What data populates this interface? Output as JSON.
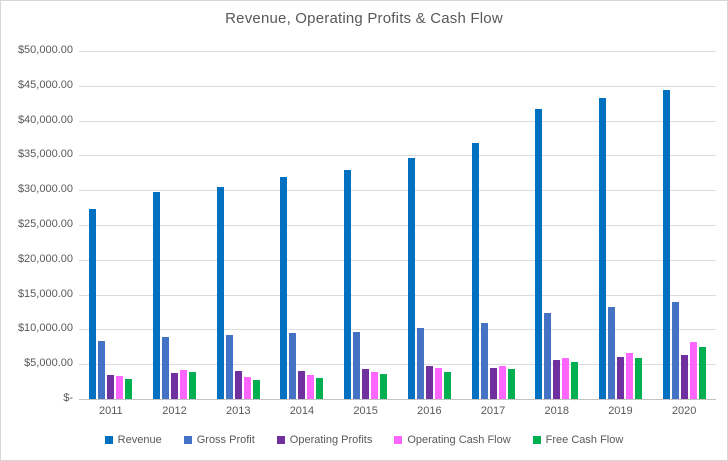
{
  "title": "Revenue, Operating Profits & Cash Flow",
  "colors": {
    "revenue": "#0070C0",
    "gross_profit": "#4472C4",
    "operating_profits": "#7030A0",
    "operating_cash_flow": "#FF66FF",
    "free_cash_flow": "#00B050",
    "gridline": "#DCDCDC",
    "axis_line": "#C3C3C3",
    "text": "#595959",
    "background": "#FFFFFF",
    "border": "#D7D7D7"
  },
  "y_axis": {
    "min": 0,
    "max": 50000,
    "step": 5000,
    "tick_labels": [
      "$-",
      "$5,000.00",
      "$10,000.00",
      "$15,000.00",
      "$20,000.00",
      "$25,000.00",
      "$30,000.00",
      "$35,000.00",
      "$40,000.00",
      "$45,000.00",
      "$50,000.00"
    ]
  },
  "chart_data": {
    "type": "bar",
    "title": "Revenue, Operating Profits & Cash Flow",
    "categories": [
      "2011",
      "2012",
      "2013",
      "2014",
      "2015",
      "2016",
      "2017",
      "2018",
      "2019",
      "2020"
    ],
    "series": [
      {
        "name": "Revenue",
        "key": "revenue",
        "color": "#0070C0",
        "values": [
          27300,
          29700,
          30500,
          31900,
          32950,
          34650,
          36750,
          41700,
          43250,
          44450
        ]
      },
      {
        "name": "Gross Profit",
        "key": "gross-profit",
        "color": "#4472C4",
        "values": [
          8300,
          8900,
          9250,
          9450,
          9650,
          10150,
          10900,
          12300,
          13150,
          13900
        ]
      },
      {
        "name": "Operating Profits",
        "key": "operating-profits",
        "color": "#7030A0",
        "values": [
          3500,
          3750,
          4000,
          4050,
          4250,
          4800,
          4450,
          5650,
          6050,
          6350
        ]
      },
      {
        "name": "Operating Cash Flow",
        "key": "operating-cash-flow",
        "color": "#FF66FF",
        "values": [
          3300,
          4200,
          3100,
          3400,
          3950,
          4450,
          4800,
          5950,
          6550,
          8150
        ]
      },
      {
        "name": "Free Cash Flow",
        "key": "free-cash-flow",
        "color": "#00B050",
        "values": [
          2900,
          3900,
          2800,
          3050,
          3600,
          3950,
          4300,
          5250,
          5950,
          7500
        ]
      }
    ],
    "xlabel": "",
    "ylabel": "",
    "ylim": [
      0,
      50000
    ],
    "grid": true,
    "legend_position": "bottom"
  }
}
